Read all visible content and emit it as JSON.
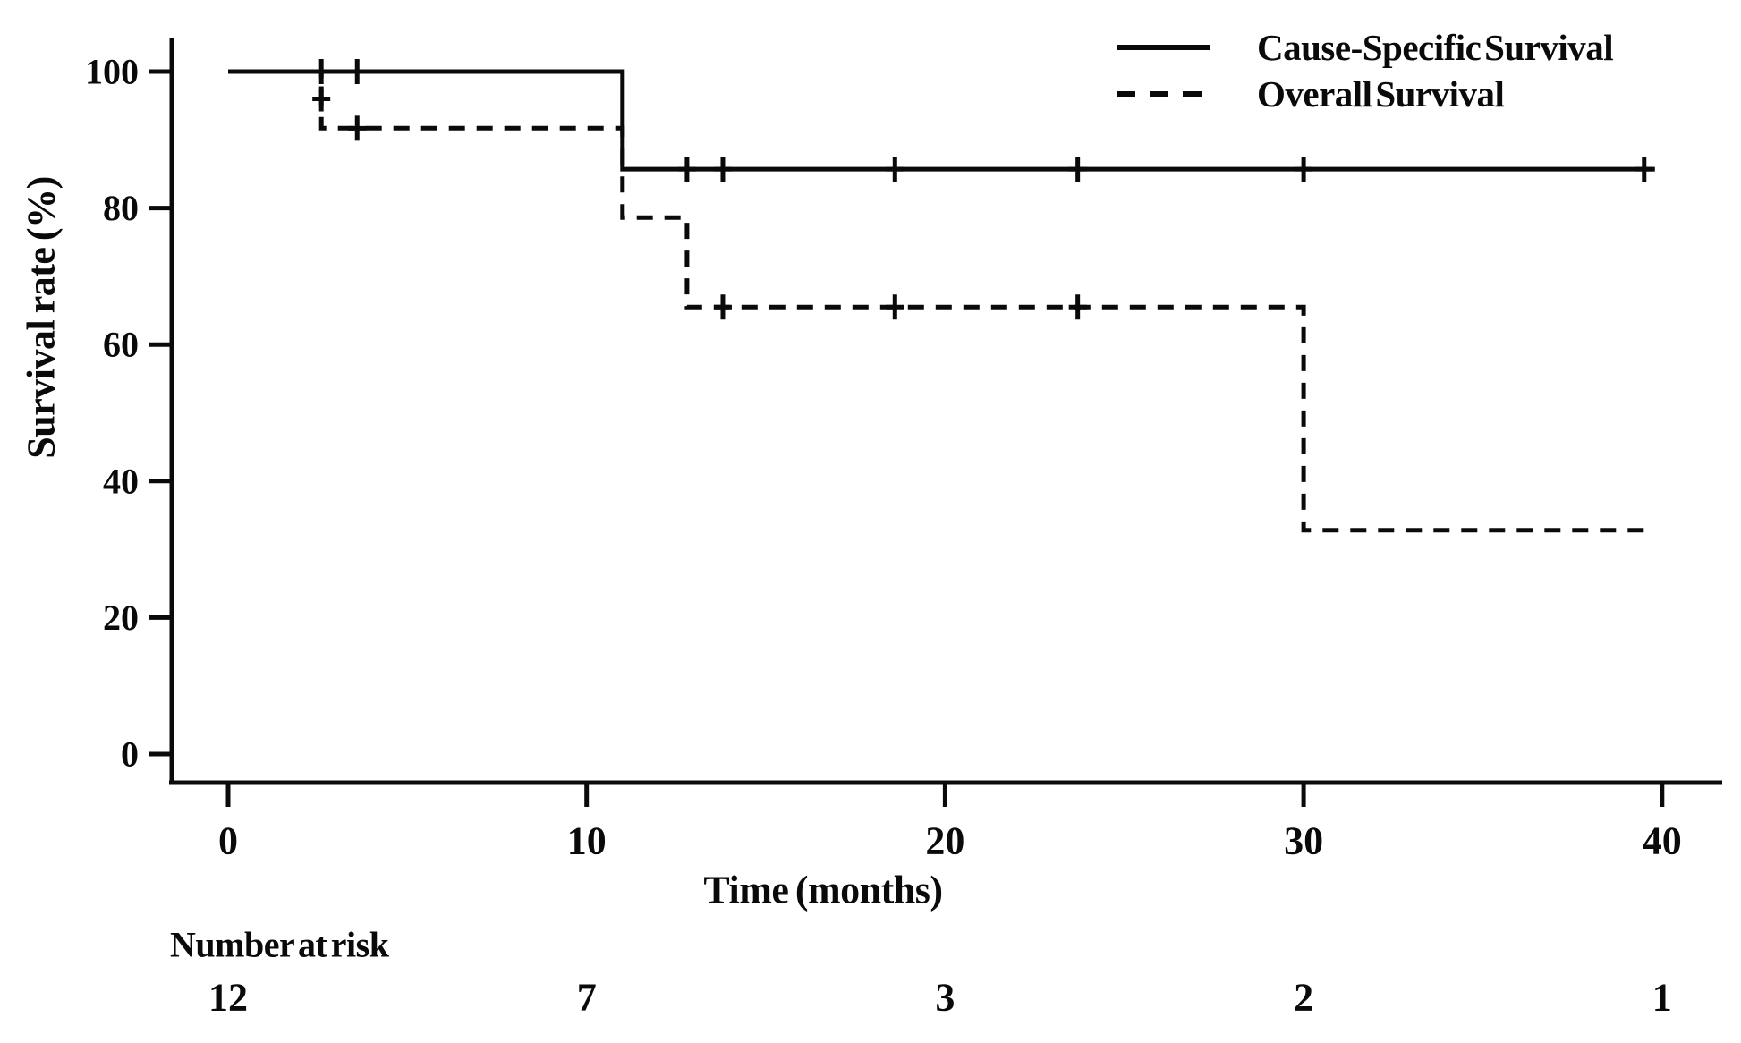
{
  "chart_data": {
    "type": "line",
    "subtype": "kaplan-meier-step",
    "title": "",
    "xlabel": "Time (months)",
    "ylabel": "Survival rate (%)",
    "xlim": [
      0,
      40
    ],
    "ylim": [
      0,
      100
    ],
    "x_ticks": [
      0,
      10,
      20,
      30,
      40
    ],
    "y_ticks": [
      100,
      80,
      60,
      40,
      20,
      0
    ],
    "grid": false,
    "legend_position": "top-right",
    "line_color": "#0a0a0a",
    "background_color": "#ffffff",
    "series": [
      {
        "name": "Cause-Specific Survival",
        "line_style": "solid",
        "steps": [
          [
            0,
            100
          ],
          [
            11,
            100
          ],
          [
            11,
            85.7
          ],
          [
            39.8,
            85.7
          ]
        ],
        "censor_marks": [
          [
            2.6,
            100
          ],
          [
            3.6,
            100
          ],
          [
            12.8,
            85.7
          ],
          [
            13.8,
            85.7
          ],
          [
            18.6,
            85.7
          ],
          [
            23.7,
            85.7
          ],
          [
            30,
            85.7
          ],
          [
            39.5,
            85.7
          ]
        ]
      },
      {
        "name": "Overall Survival",
        "line_style": "dashed",
        "steps": [
          [
            0,
            100
          ],
          [
            2.6,
            100
          ],
          [
            2.6,
            91.7
          ],
          [
            11,
            91.7
          ],
          [
            11,
            78.6
          ],
          [
            12.8,
            78.6
          ],
          [
            12.8,
            65.5
          ],
          [
            30,
            65.5
          ],
          [
            30,
            32.8
          ],
          [
            39.8,
            32.8
          ]
        ],
        "censor_marks": [
          [
            2.6,
            96
          ],
          [
            3.6,
            91.7
          ],
          [
            13.8,
            65.5
          ],
          [
            18.6,
            65.5
          ],
          [
            23.7,
            65.5
          ]
        ]
      }
    ],
    "risk_table": {
      "label": "Number at risk",
      "times": [
        0,
        10,
        20,
        30,
        40
      ],
      "values": [
        "12",
        "7",
        "3",
        "2",
        "1"
      ]
    }
  }
}
